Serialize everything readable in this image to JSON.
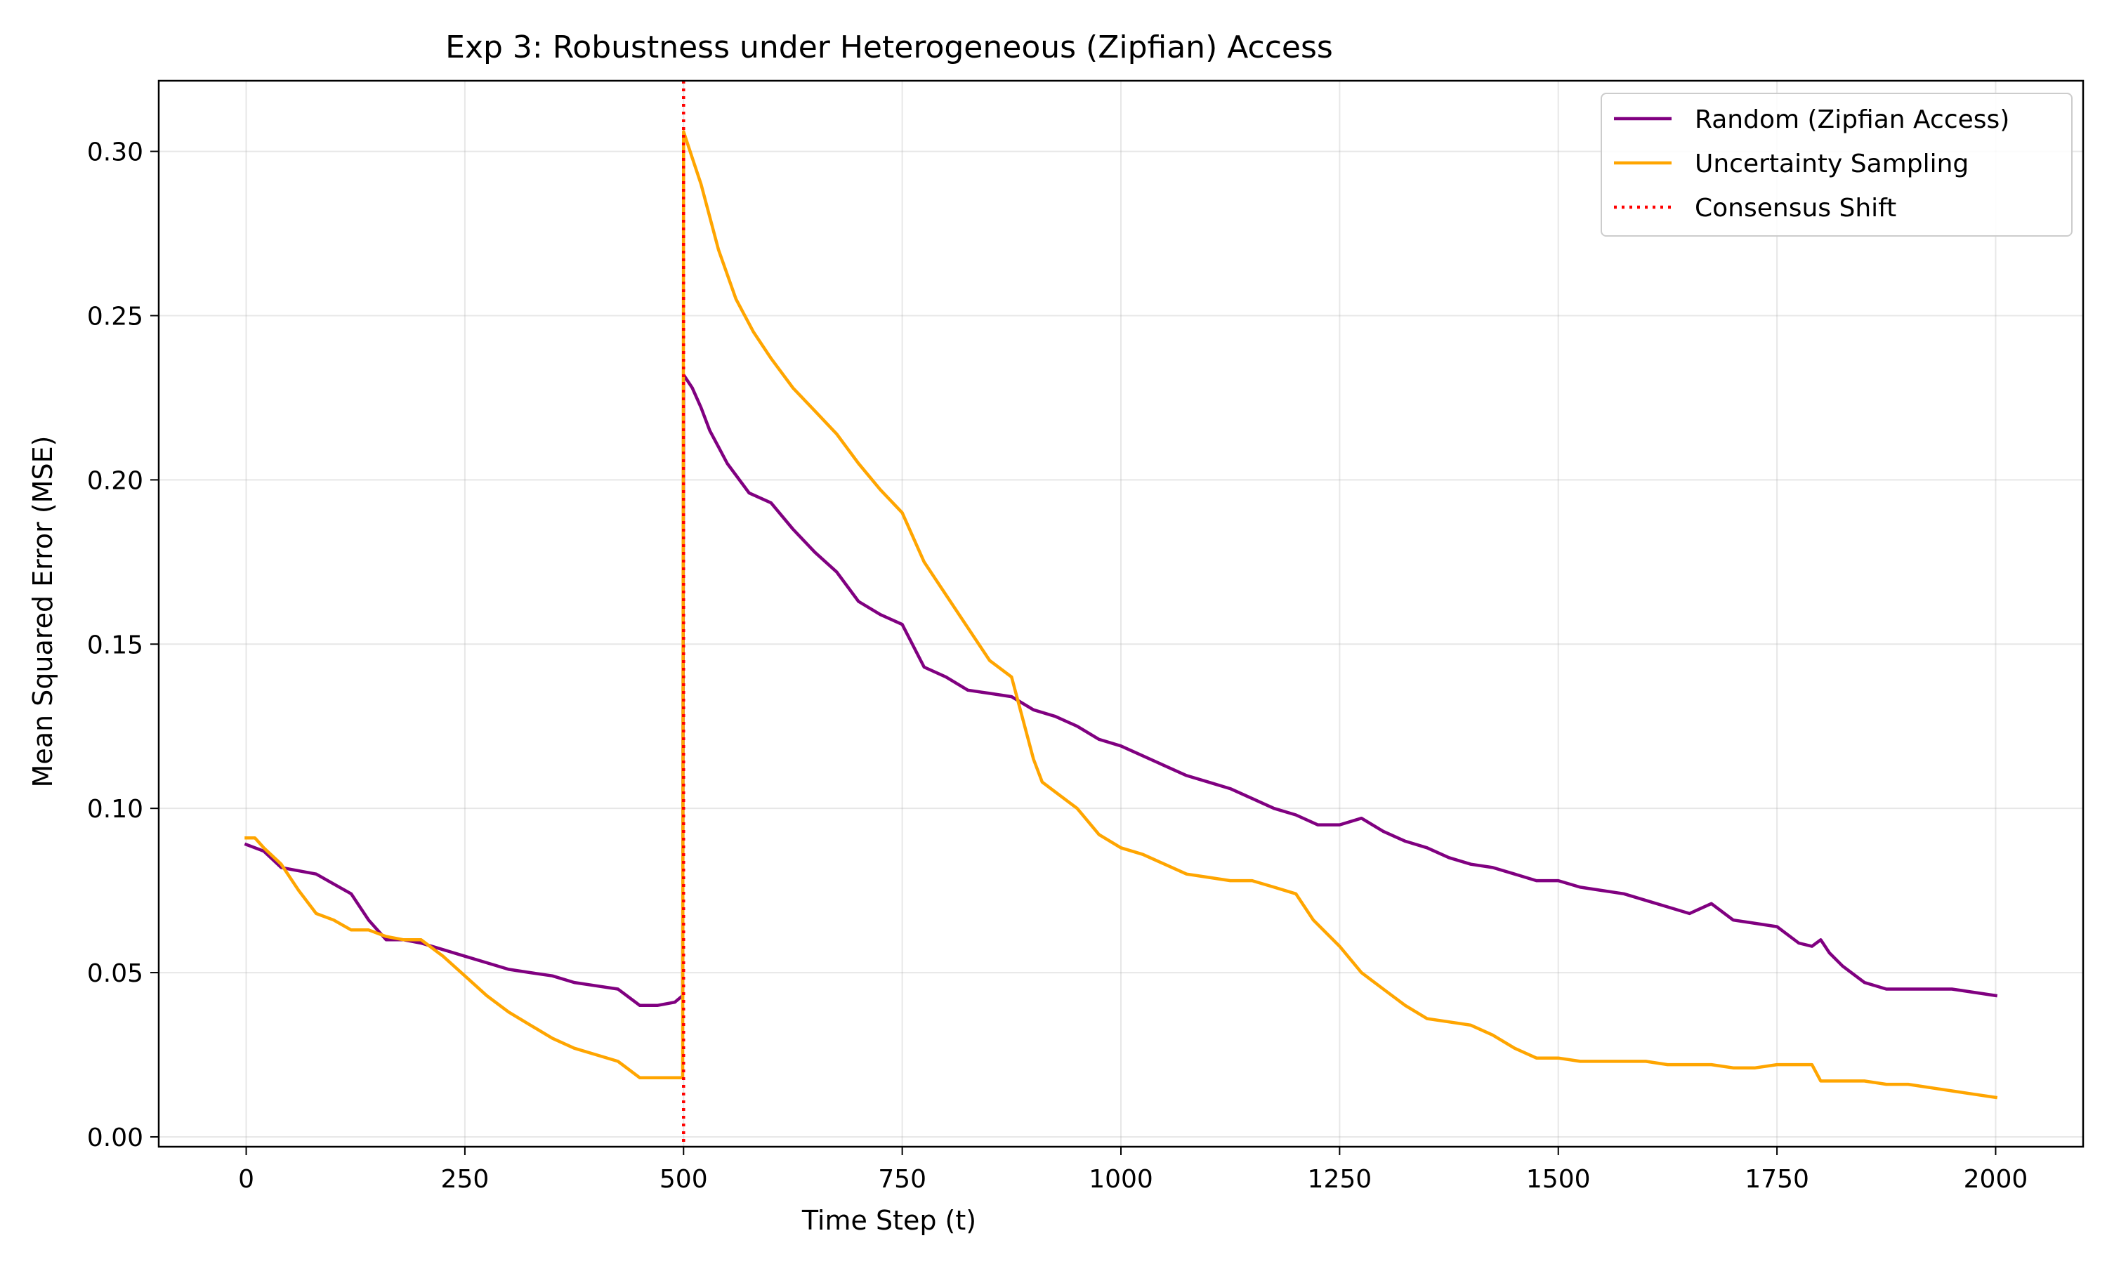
{
  "chart_data": {
    "type": "line",
    "title": "Exp 3: Robustness under Heterogeneous (Zipfian) Access",
    "xlabel": "Time Step (t)",
    "ylabel": "Mean Squared Error (MSE)",
    "xlim": [
      -100,
      2100
    ],
    "ylim": [
      -0.003,
      0.3215
    ],
    "x_ticks": [
      0,
      250,
      500,
      750,
      1000,
      1250,
      1500,
      1750,
      2000
    ],
    "x_tick_labels": [
      "0",
      "250",
      "500",
      "750",
      "1000",
      "1250",
      "1500",
      "1750",
      "2000"
    ],
    "y_ticks": [
      0.0,
      0.05,
      0.1,
      0.15,
      0.2,
      0.25,
      0.3
    ],
    "y_tick_labels": [
      "0.00",
      "0.05",
      "0.10",
      "0.15",
      "0.20",
      "0.25",
      "0.30"
    ],
    "grid": true,
    "legend_position": "top-right",
    "series": [
      {
        "name": "Random (Zipfian Access)",
        "color": "#800080",
        "x": [
          0,
          20,
          40,
          60,
          80,
          100,
          120,
          140,
          160,
          180,
          200,
          225,
          250,
          275,
          300,
          325,
          350,
          375,
          400,
          425,
          450,
          470,
          490,
          499,
          500,
          510,
          520,
          530,
          540,
          550,
          575,
          600,
          625,
          650,
          675,
          700,
          725,
          750,
          775,
          800,
          825,
          850,
          875,
          900,
          925,
          950,
          975,
          1000,
          1025,
          1050,
          1075,
          1100,
          1125,
          1150,
          1175,
          1200,
          1225,
          1250,
          1275,
          1300,
          1325,
          1350,
          1375,
          1400,
          1425,
          1450,
          1475,
          1500,
          1525,
          1550,
          1575,
          1600,
          1625,
          1650,
          1675,
          1700,
          1725,
          1750,
          1775,
          1790,
          1800,
          1810,
          1825,
          1850,
          1875,
          1900,
          1925,
          1950,
          1975,
          2000
        ],
        "y": [
          0.089,
          0.087,
          0.082,
          0.081,
          0.08,
          0.077,
          0.074,
          0.066,
          0.06,
          0.06,
          0.059,
          0.057,
          0.055,
          0.053,
          0.051,
          0.05,
          0.049,
          0.047,
          0.046,
          0.045,
          0.04,
          0.04,
          0.041,
          0.043,
          0.232,
          0.228,
          0.222,
          0.215,
          0.21,
          0.205,
          0.196,
          0.193,
          0.185,
          0.178,
          0.172,
          0.163,
          0.159,
          0.156,
          0.143,
          0.14,
          0.136,
          0.135,
          0.134,
          0.13,
          0.128,
          0.125,
          0.121,
          0.119,
          0.116,
          0.113,
          0.11,
          0.108,
          0.106,
          0.103,
          0.1,
          0.098,
          0.095,
          0.095,
          0.097,
          0.093,
          0.09,
          0.088,
          0.085,
          0.083,
          0.082,
          0.08,
          0.078,
          0.078,
          0.076,
          0.075,
          0.074,
          0.072,
          0.07,
          0.068,
          0.071,
          0.066,
          0.065,
          0.064,
          0.059,
          0.058,
          0.06,
          0.056,
          0.052,
          0.047,
          0.045,
          0.045,
          0.045,
          0.045,
          0.044,
          0.043
        ]
      },
      {
        "name": "Uncertainty Sampling",
        "color": "#FFA500",
        "x": [
          0,
          10,
          20,
          40,
          60,
          80,
          100,
          120,
          140,
          160,
          180,
          200,
          225,
          250,
          275,
          300,
          325,
          350,
          375,
          400,
          425,
          450,
          470,
          490,
          499,
          500,
          510,
          520,
          540,
          560,
          580,
          600,
          625,
          650,
          675,
          700,
          725,
          750,
          775,
          800,
          825,
          850,
          875,
          900,
          910,
          925,
          950,
          975,
          1000,
          1025,
          1050,
          1075,
          1100,
          1125,
          1150,
          1175,
          1200,
          1220,
          1250,
          1275,
          1300,
          1325,
          1350,
          1375,
          1400,
          1425,
          1450,
          1475,
          1500,
          1525,
          1550,
          1575,
          1600,
          1625,
          1650,
          1675,
          1700,
          1725,
          1750,
          1775,
          1790,
          1800,
          1825,
          1850,
          1875,
          1900,
          1925,
          1950,
          1975,
          2000
        ],
        "y": [
          0.091,
          0.091,
          0.088,
          0.083,
          0.075,
          0.068,
          0.066,
          0.063,
          0.063,
          0.061,
          0.06,
          0.06,
          0.055,
          0.049,
          0.043,
          0.038,
          0.034,
          0.03,
          0.027,
          0.025,
          0.023,
          0.018,
          0.018,
          0.018,
          0.018,
          0.306,
          0.298,
          0.29,
          0.27,
          0.255,
          0.245,
          0.237,
          0.228,
          0.221,
          0.214,
          0.205,
          0.197,
          0.19,
          0.175,
          0.165,
          0.155,
          0.145,
          0.14,
          0.115,
          0.108,
          0.105,
          0.1,
          0.092,
          0.088,
          0.086,
          0.083,
          0.08,
          0.079,
          0.078,
          0.078,
          0.076,
          0.074,
          0.066,
          0.058,
          0.05,
          0.045,
          0.04,
          0.036,
          0.035,
          0.034,
          0.031,
          0.027,
          0.024,
          0.024,
          0.023,
          0.023,
          0.023,
          0.023,
          0.022,
          0.022,
          0.022,
          0.021,
          0.021,
          0.022,
          0.022,
          0.022,
          0.017,
          0.017,
          0.017,
          0.016,
          0.016,
          0.015,
          0.014,
          0.013,
          0.012
        ]
      }
    ],
    "vlines": [
      {
        "name": "Consensus Shift",
        "x": 500,
        "color": "#FF0000",
        "style": "dotted"
      }
    ]
  }
}
